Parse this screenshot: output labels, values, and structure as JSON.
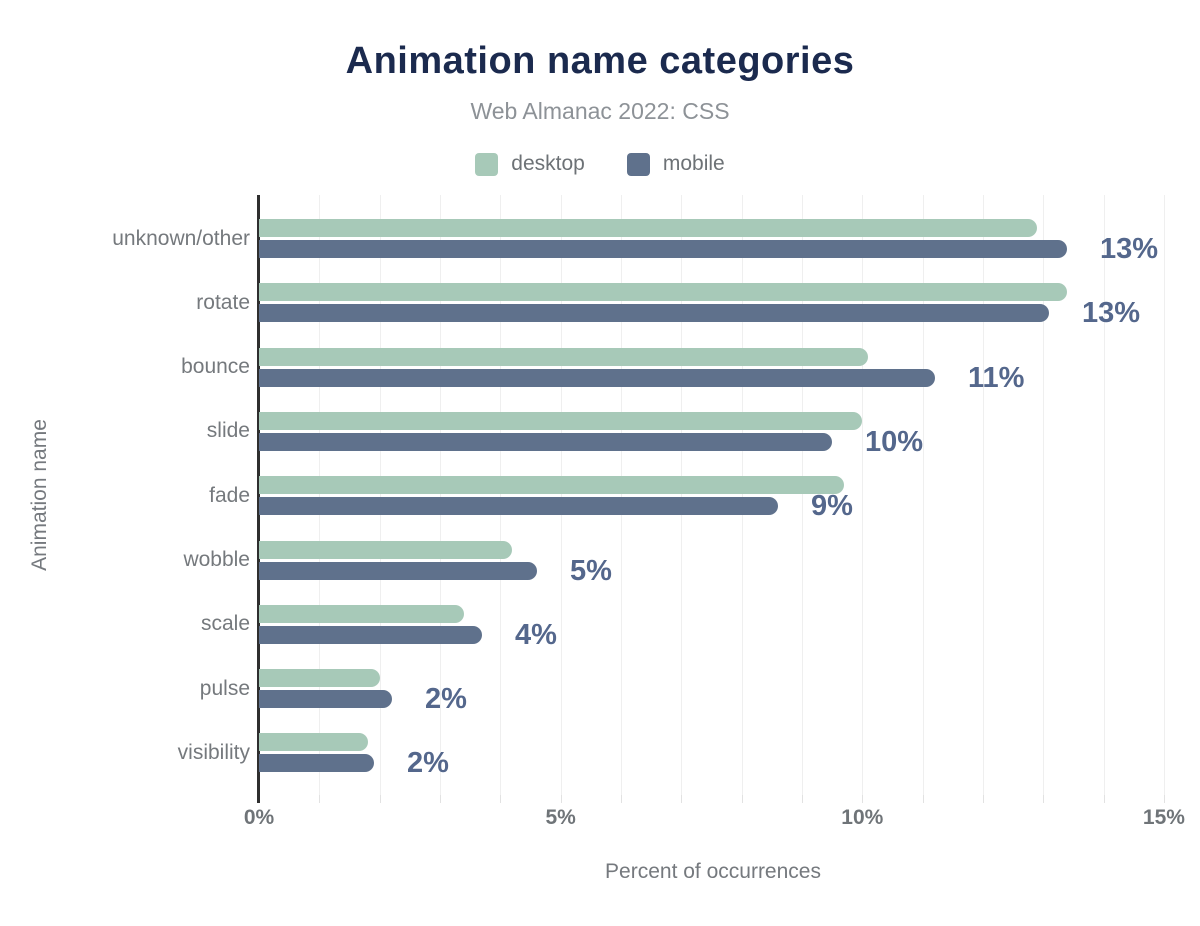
{
  "header": {
    "title": "Animation name categories",
    "subtitle": "Web Almanac 2022: CSS"
  },
  "legend": [
    {
      "label": "desktop",
      "color": "#a7c9b8"
    },
    {
      "label": "mobile",
      "color": "#5f718c"
    }
  ],
  "chart_data": {
    "type": "bar",
    "orientation": "horizontal",
    "title": "Animation name categories",
    "subtitle": "Web Almanac 2022: CSS",
    "categories": [
      "unknown/other",
      "rotate",
      "bounce",
      "slide",
      "fade",
      "wobble",
      "scale",
      "pulse",
      "visibility"
    ],
    "series": [
      {
        "name": "desktop",
        "color": "#a7c9b8",
        "values": [
          12.9,
          13.4,
          10.1,
          10.0,
          9.7,
          4.2,
          3.4,
          2.0,
          1.8
        ]
      },
      {
        "name": "mobile",
        "color": "#5f718c",
        "values": [
          13.4,
          13.1,
          11.2,
          9.5,
          8.6,
          4.6,
          3.7,
          2.2,
          1.9
        ]
      }
    ],
    "value_labels": [
      "13%",
      "13%",
      "11%",
      "10%",
      "9%",
      "5%",
      "4%",
      "2%",
      "2%"
    ],
    "value_labels_series": "mobile",
    "xlabel": "Percent of occurrences",
    "ylabel": "Animation name",
    "x_ticks": [
      "0%",
      "5%",
      "10%",
      "15%"
    ],
    "x_tick_values": [
      0,
      5,
      10,
      15
    ],
    "xlim": [
      0,
      15.05
    ],
    "grid": "vertical minor gridlines every 1%",
    "legend_position": "top center"
  },
  "colors": {
    "title": "#1b2a4e",
    "subtitle": "#8d9297",
    "desktop_bar": "#a7c9b8",
    "mobile_bar": "#5f718c",
    "value_label": "#54678c",
    "axis_line": "#2f2f2f",
    "gridline": "#efefef",
    "tick_text": "#6f7478",
    "background": "#ffffff"
  }
}
